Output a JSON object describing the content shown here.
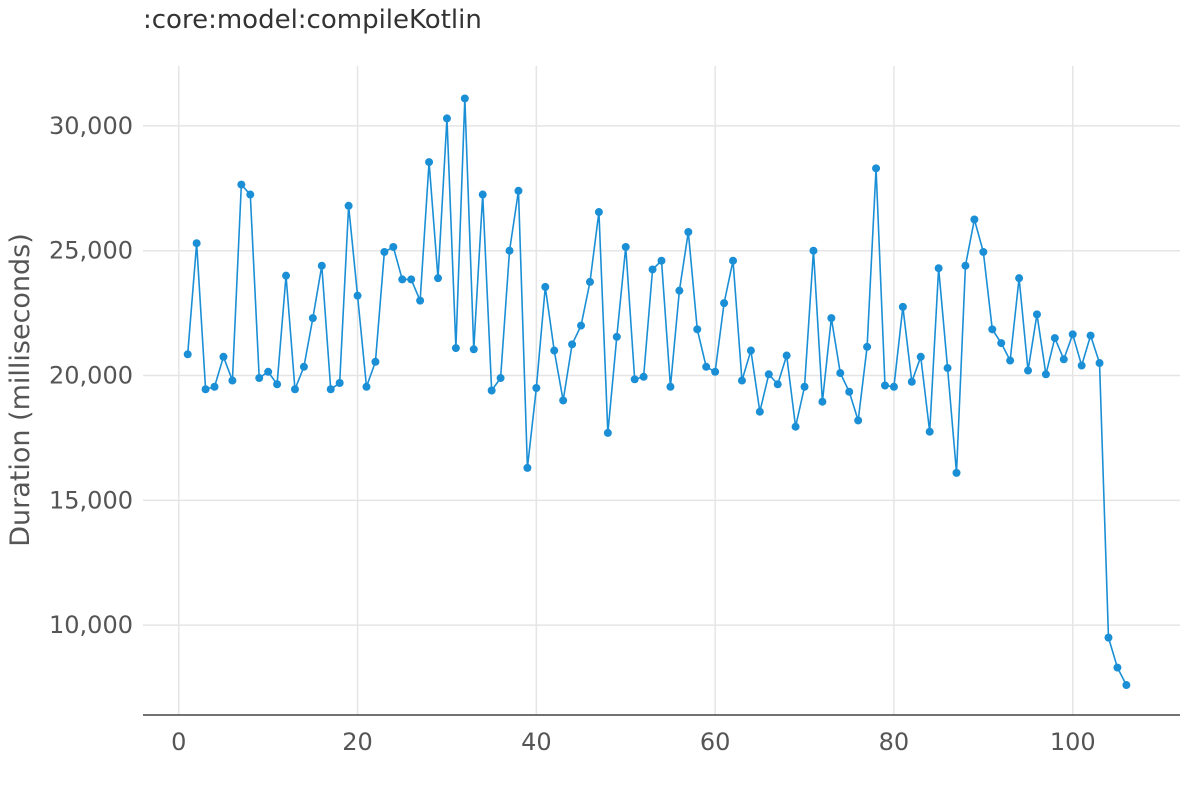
{
  "chart_data": {
    "type": "line",
    "title": ":core:model:compileKotlin",
    "xlabel": "",
    "ylabel": "Duration (milliseconds)",
    "xlim": [
      -4,
      112
    ],
    "ylim": [
      6400,
      32400
    ],
    "x_ticks": [
      0,
      20,
      40,
      60,
      80,
      100
    ],
    "y_ticks": [
      10000,
      15000,
      20000,
      25000,
      30000
    ],
    "x_tick_labels": [
      "0",
      "20",
      "40",
      "60",
      "80",
      "100"
    ],
    "y_tick_labels": [
      "10,000",
      "15,000",
      "20,000",
      "25,000",
      "30,000"
    ],
    "grid": true,
    "series": [
      {
        "color": "#1a8fd6",
        "markers": true,
        "x": [
          1,
          2,
          3,
          4,
          5,
          6,
          7,
          8,
          9,
          10,
          11,
          12,
          13,
          14,
          15,
          16,
          17,
          18,
          19,
          20,
          21,
          22,
          23,
          24,
          25,
          26,
          27,
          28,
          29,
          30,
          31,
          32,
          33,
          34,
          35,
          36,
          37,
          38,
          39,
          40,
          41,
          42,
          43,
          44,
          45,
          46,
          47,
          48,
          49,
          50,
          51,
          52,
          53,
          54,
          55,
          56,
          57,
          58,
          59,
          60,
          61,
          62,
          63,
          64,
          65,
          66,
          67,
          68,
          69,
          70,
          71,
          72,
          73,
          74,
          75,
          76,
          77,
          78,
          79,
          80,
          81,
          82,
          83,
          84,
          85,
          86,
          87,
          88,
          89,
          90,
          91,
          92,
          93,
          94,
          95,
          96,
          97,
          98,
          99,
          100,
          101,
          102,
          103,
          104,
          105,
          106
        ],
        "values": [
          20850,
          25300,
          19450,
          19550,
          20750,
          19800,
          27650,
          27250,
          19900,
          20150,
          19650,
          24000,
          19450,
          20350,
          22300,
          24400,
          19450,
          19700,
          26800,
          23200,
          19550,
          20550,
          24950,
          25150,
          23850,
          23850,
          23000,
          28550,
          23900,
          30300,
          21100,
          31100,
          21050,
          27250,
          19400,
          19900,
          25000,
          27400,
          16300,
          19500,
          23550,
          21000,
          19000,
          21250,
          22000,
          23750,
          26550,
          17700,
          21550,
          25150,
          19850,
          19950,
          24250,
          24600,
          19550,
          23400,
          25750,
          21850,
          20350,
          20150,
          22900,
          24600,
          19800,
          21000,
          18550,
          20050,
          19650,
          20800,
          17950,
          19550,
          25000,
          18950,
          22300,
          20100,
          19350,
          18200,
          21150,
          28300,
          19600,
          19550,
          22750,
          19750,
          20750,
          17750,
          24300,
          20300,
          16100,
          24400,
          26250,
          24950,
          21850,
          21300,
          20600,
          23900,
          20200,
          22450,
          20050,
          21500,
          20650,
          21650,
          20400,
          21600,
          20500,
          9500,
          8300,
          7600
        ]
      }
    ]
  }
}
